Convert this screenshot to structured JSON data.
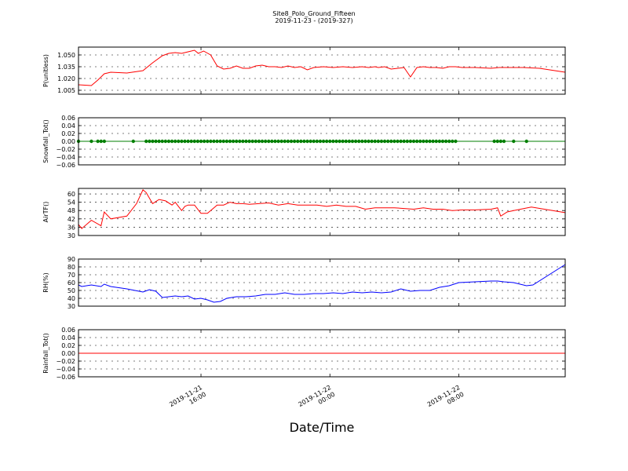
{
  "title": "Site8_Polo_Ground_Fifteen",
  "subtitle": "2019-11-23 - (2019-327)",
  "xlabel": "Date/Time",
  "colors": {
    "red": "#ff0000",
    "green": "#007f00",
    "blue": "#0000ff",
    "grid": "#000000"
  },
  "chart_data": [
    {
      "type": "line",
      "ylabel": "P(unitless)",
      "ylim": [
        1.0,
        1.06
      ],
      "yticks": [
        "1.005",
        "1.020",
        "1.035",
        "1.050"
      ],
      "yticks_values": [
        1.005,
        1.02,
        1.035,
        1.05
      ],
      "xlim": [
        "2019-11-21 08:24",
        "2019-11-22 14:36"
      ],
      "xticks": [
        [
          "2019-11-21",
          "16:00"
        ],
        [
          "2019-11-22",
          "00:00"
        ],
        [
          "2019-11-22",
          "08:00"
        ]
      ],
      "xticks_values": [
        "2019-11-21 16:00",
        "2019-11-22 00:00",
        "2019-11-22 08:00"
      ],
      "grid": true,
      "color": "red",
      "x": [
        "2019-11-21 08:24",
        "2019-11-21 09:12",
        "2019-11-21 09:36",
        "2019-11-21 10:00",
        "2019-11-21 10:24",
        "2019-11-21 11:24",
        "2019-11-21 12:24",
        "2019-11-21 13:00",
        "2019-11-21 13:36",
        "2019-11-21 14:00",
        "2019-11-21 14:24",
        "2019-11-21 14:48",
        "2019-11-21 15:12",
        "2019-11-21 15:36",
        "2019-11-21 15:50",
        "2019-11-21 16:10",
        "2019-11-21 16:36",
        "2019-11-21 17:00",
        "2019-11-21 17:24",
        "2019-11-21 17:48",
        "2019-11-21 18:12",
        "2019-11-21 18:36",
        "2019-11-21 19:00",
        "2019-11-21 19:24",
        "2019-11-21 19:48",
        "2019-11-21 20:12",
        "2019-11-21 20:36",
        "2019-11-21 21:00",
        "2019-11-21 21:24",
        "2019-11-21 21:48",
        "2019-11-21 22:12",
        "2019-11-21 22:36",
        "2019-11-21 23:00",
        "2019-11-21 23:36",
        "2019-11-22 00:12",
        "2019-11-22 00:48",
        "2019-11-22 01:24",
        "2019-11-22 02:00",
        "2019-11-22 02:24",
        "2019-11-22 02:48",
        "2019-11-22 03:00",
        "2019-11-22 03:24",
        "2019-11-22 03:48",
        "2019-11-22 04:12",
        "2019-11-22 04:36",
        "2019-11-22 05:00",
        "2019-11-22 05:24",
        "2019-11-22 05:48",
        "2019-11-22 06:12",
        "2019-11-22 06:36",
        "2019-11-22 07:00",
        "2019-11-22 07:24",
        "2019-11-22 07:48",
        "2019-11-22 08:12",
        "2019-11-22 09:00",
        "2019-11-22 10:00",
        "2019-11-22 10:30",
        "2019-11-22 11:00",
        "2019-11-22 12:00",
        "2019-11-22 13:00",
        "2019-11-22 14:36"
      ],
      "y": [
        1.012,
        1.011,
        1.018,
        1.026,
        1.028,
        1.027,
        1.03,
        1.04,
        1.049,
        1.052,
        1.053,
        1.052,
        1.054,
        1.056,
        1.052,
        1.055,
        1.05,
        1.036,
        1.032,
        1.033,
        1.036,
        1.033,
        1.033,
        1.036,
        1.037,
        1.035,
        1.035,
        1.034,
        1.036,
        1.034,
        1.035,
        1.031,
        1.034,
        1.035,
        1.034,
        1.035,
        1.034,
        1.035,
        1.034,
        1.035,
        1.034,
        1.035,
        1.032,
        1.033,
        1.034,
        1.022,
        1.034,
        1.035,
        1.034,
        1.034,
        1.033,
        1.035,
        1.035,
        1.034,
        1.034,
        1.033,
        1.034,
        1.034,
        1.034,
        1.033,
        1.028
      ]
    },
    {
      "type": "scatter",
      "ylabel": "Snowfall_Tot()",
      "ylim": [
        -0.06,
        0.06
      ],
      "yticks": [
        "−0.06",
        "−0.04",
        "−0.02",
        "0.00",
        "0.02",
        "0.04",
        "0.06"
      ],
      "yticks_values": [
        -0.06,
        -0.04,
        -0.02,
        0.0,
        0.02,
        0.04,
        0.06
      ],
      "xlim": [
        "2019-11-21 08:24",
        "2019-11-22 14:36"
      ],
      "grid": true,
      "color": "green",
      "line": true,
      "x": [
        "2019-11-21 08:24",
        "2019-11-21 09:12",
        "2019-11-21 09:36",
        "2019-11-21 09:48",
        "2019-11-21 10:00",
        "2019-11-21 11:48",
        "2019-11-21 12:36",
        "2019-11-21 12:48",
        "2019-11-21 13:00",
        "2019-11-21 13:12",
        "2019-11-21 13:24",
        "2019-11-21 13:36",
        "2019-11-21 13:48",
        "2019-11-21 14:00",
        "2019-11-21 14:12",
        "2019-11-21 14:24",
        "2019-11-21 14:36",
        "2019-11-21 14:48",
        "2019-11-21 15:00",
        "2019-11-21 15:12",
        "2019-11-21 15:24",
        "2019-11-21 15:36",
        "2019-11-21 15:48",
        "2019-11-21 16:00",
        "2019-11-21 16:12",
        "2019-11-21 16:24",
        "2019-11-21 16:36",
        "2019-11-21 16:48",
        "2019-11-21 17:00",
        "2019-11-21 17:12",
        "2019-11-21 17:24",
        "2019-11-21 17:36",
        "2019-11-21 17:48",
        "2019-11-21 18:00",
        "2019-11-21 18:12",
        "2019-11-21 18:24",
        "2019-11-21 18:36",
        "2019-11-21 18:48",
        "2019-11-21 19:00",
        "2019-11-21 19:12",
        "2019-11-21 19:24",
        "2019-11-21 19:36",
        "2019-11-21 19:48",
        "2019-11-21 20:00",
        "2019-11-21 20:12",
        "2019-11-21 20:24",
        "2019-11-21 20:36",
        "2019-11-21 20:48",
        "2019-11-21 21:00",
        "2019-11-21 21:12",
        "2019-11-21 21:24",
        "2019-11-21 21:36",
        "2019-11-21 21:48",
        "2019-11-21 22:00",
        "2019-11-21 22:12",
        "2019-11-21 22:24",
        "2019-11-21 22:36",
        "2019-11-21 22:48",
        "2019-11-21 23:00",
        "2019-11-21 23:12",
        "2019-11-21 23:24",
        "2019-11-21 23:36",
        "2019-11-21 23:48",
        "2019-11-22 00:00",
        "2019-11-22 00:12",
        "2019-11-22 00:24",
        "2019-11-22 00:36",
        "2019-11-22 00:48",
        "2019-11-22 01:00",
        "2019-11-22 01:12",
        "2019-11-22 01:24",
        "2019-11-22 01:36",
        "2019-11-22 01:48",
        "2019-11-22 02:00",
        "2019-11-22 02:12",
        "2019-11-22 02:24",
        "2019-11-22 02:36",
        "2019-11-22 02:48",
        "2019-11-22 03:00",
        "2019-11-22 03:12",
        "2019-11-22 03:24",
        "2019-11-22 03:36",
        "2019-11-22 03:48",
        "2019-11-22 04:00",
        "2019-11-22 04:12",
        "2019-11-22 04:24",
        "2019-11-22 04:36",
        "2019-11-22 04:48",
        "2019-11-22 05:00",
        "2019-11-22 05:12",
        "2019-11-22 05:24",
        "2019-11-22 05:36",
        "2019-11-22 05:48",
        "2019-11-22 06:00",
        "2019-11-22 06:12",
        "2019-11-22 06:24",
        "2019-11-22 06:36",
        "2019-11-22 06:48",
        "2019-11-22 07:00",
        "2019-11-22 07:12",
        "2019-11-22 07:24",
        "2019-11-22 07:36",
        "2019-11-22 07:48",
        "2019-11-22 10:12",
        "2019-11-22 10:24",
        "2019-11-22 10:36",
        "2019-11-22 10:48",
        "2019-11-22 11:24",
        "2019-11-22 12:12"
      ],
      "y": [
        0,
        0,
        0,
        0,
        0,
        0,
        0,
        0,
        0,
        0,
        0,
        0,
        0,
        0,
        0,
        0,
        0,
        0,
        0,
        0,
        0,
        0,
        0,
        0,
        0,
        0,
        0,
        0,
        0,
        0,
        0,
        0,
        0,
        0,
        0,
        0,
        0,
        0,
        0,
        0,
        0,
        0,
        0,
        0,
        0,
        0,
        0,
        0,
        0,
        0,
        0,
        0,
        0,
        0,
        0,
        0,
        0,
        0,
        0,
        0,
        0,
        0,
        0,
        0,
        0,
        0,
        0,
        0,
        0,
        0,
        0,
        0,
        0,
        0,
        0,
        0,
        0,
        0,
        0,
        0,
        0,
        0,
        0,
        0,
        0,
        0,
        0,
        0,
        0,
        0,
        0,
        0,
        0,
        0,
        0,
        0,
        0,
        0,
        0,
        0,
        0,
        0,
        0,
        0,
        0,
        0,
        0,
        0,
        0
      ]
    },
    {
      "type": "line",
      "ylabel": "AirTF()",
      "ylim": [
        30,
        64
      ],
      "yticks": [
        "30",
        "36",
        "42",
        "48",
        "54",
        "60"
      ],
      "yticks_values": [
        30,
        36,
        42,
        48,
        54,
        60
      ],
      "xlim": [
        "2019-11-21 08:24",
        "2019-11-22 14:36"
      ],
      "grid": true,
      "color": "red",
      "x": [
        "2019-11-21 08:24",
        "2019-11-21 08:36",
        "2019-11-21 09:12",
        "2019-11-21 09:48",
        "2019-11-21 10:00",
        "2019-11-21 10:24",
        "2019-11-21 11:24",
        "2019-11-21 12:00",
        "2019-11-21 12:24",
        "2019-11-21 12:36",
        "2019-11-21 13:00",
        "2019-11-21 13:24",
        "2019-11-21 13:48",
        "2019-11-21 14:12",
        "2019-11-21 14:24",
        "2019-11-21 14:36",
        "2019-11-21 14:48",
        "2019-11-21 15:00",
        "2019-11-21 15:12",
        "2019-11-21 15:36",
        "2019-11-21 16:00",
        "2019-11-21 16:24",
        "2019-11-21 16:48",
        "2019-11-21 17:00",
        "2019-11-21 17:24",
        "2019-11-21 17:48",
        "2019-11-21 18:12",
        "2019-11-21 18:36",
        "2019-11-21 19:00",
        "2019-11-21 19:36",
        "2019-11-21 20:12",
        "2019-11-21 20:48",
        "2019-11-21 21:24",
        "2019-11-21 22:00",
        "2019-11-21 22:36",
        "2019-11-21 23:12",
        "2019-11-21 23:48",
        "2019-11-22 00:24",
        "2019-11-22 01:00",
        "2019-11-22 01:36",
        "2019-11-22 02:12",
        "2019-11-22 02:48",
        "2019-11-22 03:24",
        "2019-11-22 04:00",
        "2019-11-22 04:36",
        "2019-11-22 05:12",
        "2019-11-22 05:48",
        "2019-11-22 06:24",
        "2019-11-22 07:00",
        "2019-11-22 07:36",
        "2019-11-22 08:12",
        "2019-11-22 09:00",
        "2019-11-22 10:00",
        "2019-11-22 10:24",
        "2019-11-22 10:36",
        "2019-11-22 11:00",
        "2019-11-22 11:24",
        "2019-11-22 12:30",
        "2019-11-22 14:36"
      ],
      "y": [
        38,
        35,
        41,
        37,
        47,
        42,
        44,
        53,
        63,
        61,
        53,
        56,
        55,
        52,
        54,
        51,
        48,
        51,
        52,
        52,
        46,
        46,
        50,
        52,
        52,
        54,
        53,
        53,
        52.5,
        53,
        53.5,
        52,
        53,
        52,
        52,
        52,
        51,
        52,
        51,
        51,
        49,
        50,
        50,
        50,
        49.5,
        49,
        50,
        49,
        49,
        48,
        48.5,
        48.5,
        49,
        50,
        44,
        47,
        48,
        50.5,
        46.5
      ]
    },
    {
      "type": "line",
      "ylabel": "RH(%)",
      "ylim": [
        30,
        90
      ],
      "yticks": [
        "30",
        "40",
        "50",
        "60",
        "70",
        "80",
        "90"
      ],
      "yticks_values": [
        30,
        40,
        50,
        60,
        70,
        80,
        90
      ],
      "xlim": [
        "2019-11-21 08:24",
        "2019-11-22 14:36"
      ],
      "grid": true,
      "color": "blue",
      "x": [
        "2019-11-21 08:24",
        "2019-11-21 08:36",
        "2019-11-21 09:12",
        "2019-11-21 09:48",
        "2019-11-21 10:00",
        "2019-11-21 10:24",
        "2019-11-21 11:24",
        "2019-11-21 12:24",
        "2019-11-21 12:48",
        "2019-11-21 13:12",
        "2019-11-21 13:36",
        "2019-11-21 14:00",
        "2019-11-21 14:24",
        "2019-11-21 14:48",
        "2019-11-21 15:12",
        "2019-11-21 15:36",
        "2019-11-21 16:00",
        "2019-11-21 16:24",
        "2019-11-21 16:48",
        "2019-11-21 17:12",
        "2019-11-21 17:36",
        "2019-11-21 18:12",
        "2019-11-21 18:48",
        "2019-11-21 19:24",
        "2019-11-21 20:00",
        "2019-11-21 20:36",
        "2019-11-21 21:12",
        "2019-11-21 21:48",
        "2019-11-21 22:24",
        "2019-11-21 23:00",
        "2019-11-21 23:36",
        "2019-11-22 00:12",
        "2019-11-22 00:48",
        "2019-11-22 01:24",
        "2019-11-22 02:00",
        "2019-11-22 02:36",
        "2019-11-22 03:12",
        "2019-11-22 03:48",
        "2019-11-22 04:24",
        "2019-11-22 05:00",
        "2019-11-22 05:36",
        "2019-11-22 06:12",
        "2019-11-22 06:48",
        "2019-11-22 07:24",
        "2019-11-22 08:00",
        "2019-11-22 09:00",
        "2019-11-22 10:00",
        "2019-11-22 10:24",
        "2019-11-22 10:48",
        "2019-11-22 11:24",
        "2019-11-22 12:12",
        "2019-11-22 12:36",
        "2019-11-22 14:36"
      ],
      "y": [
        57,
        55,
        57,
        55,
        58,
        55,
        52,
        48,
        51,
        49,
        41,
        42,
        43,
        42,
        43,
        39,
        40,
        38,
        35,
        36,
        40,
        42,
        42,
        43,
        45,
        45,
        47,
        45,
        45,
        46,
        46,
        47,
        46,
        48,
        47,
        48,
        47,
        48,
        52,
        49,
        50,
        50,
        54,
        56,
        60,
        61,
        62,
        62,
        61,
        60,
        56,
        57,
        83
      ]
    },
    {
      "type": "line",
      "ylabel": "Rainfall_Tot()",
      "ylim": [
        -0.06,
        0.06
      ],
      "yticks": [
        "−0.06",
        "−0.04",
        "−0.02",
        "0.00",
        "0.02",
        "0.04",
        "0.06"
      ],
      "yticks_values": [
        -0.06,
        -0.04,
        -0.02,
        0.0,
        0.02,
        0.04,
        0.06
      ],
      "xlim": [
        "2019-11-21 08:24",
        "2019-11-22 14:36"
      ],
      "grid": true,
      "color": "red",
      "x": [
        "2019-11-21 08:24",
        "2019-11-22 14:36"
      ],
      "y": [
        0,
        0
      ]
    }
  ]
}
